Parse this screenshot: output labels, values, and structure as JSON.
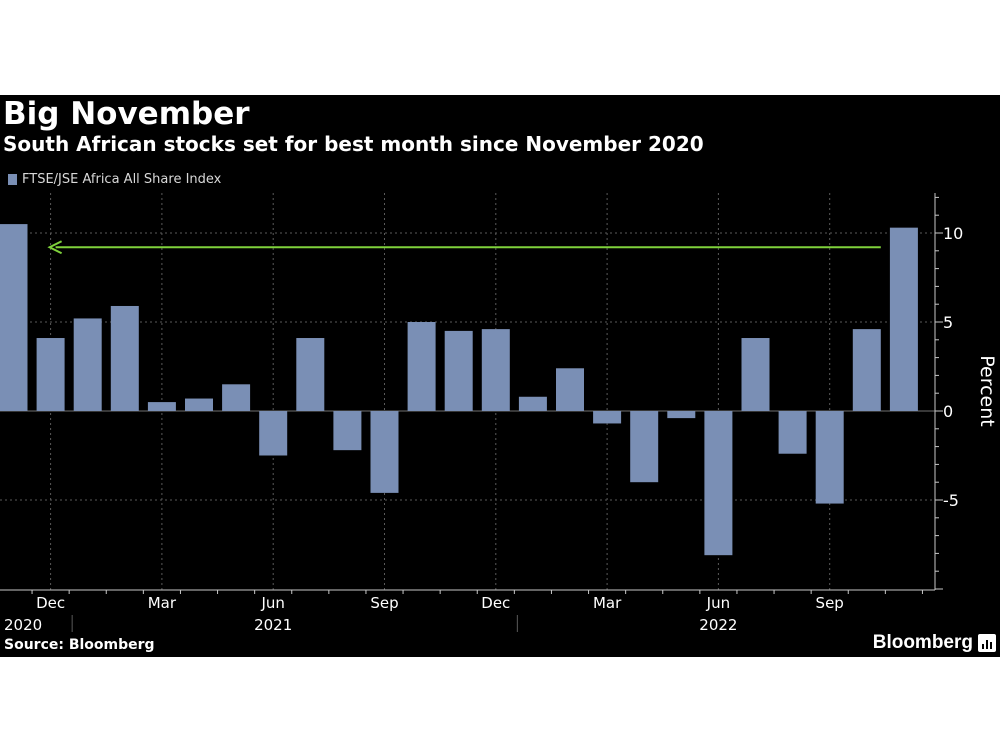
{
  "chart_data": {
    "type": "bar",
    "title": "Big November",
    "subtitle": "South African stocks set for best month since November 2020",
    "ylabel": "Percent",
    "ylim": [
      -10,
      12
    ],
    "yticks": [
      -5,
      0,
      5,
      10
    ],
    "grid": true,
    "legend_position": "top-left",
    "series": [
      {
        "name": "FTSE/JSE Africa All Share Index",
        "color": "#7a8fb5",
        "values": [
          10.5,
          4.1,
          5.2,
          5.9,
          0.5,
          0.7,
          1.5,
          -2.5,
          4.1,
          -2.2,
          -4.6,
          5.0,
          4.5,
          4.6,
          0.8,
          2.4,
          -0.7,
          -4.0,
          -0.4,
          -8.1,
          4.1,
          -2.4,
          -5.2,
          4.6,
          10.3
        ]
      }
    ],
    "categories": [
      "Nov 2020",
      "Dec 2020",
      "Jan 2021",
      "Feb 2021",
      "Mar 2021",
      "Apr 2021",
      "May 2021",
      "Jun 2021",
      "Jul 2021",
      "Aug 2021",
      "Sep 2021",
      "Oct 2021",
      "Nov 2021",
      "Dec 2021",
      "Jan 2022",
      "Feb 2022",
      "Mar 2022",
      "Apr 2022",
      "May 2022",
      "Jun 2022",
      "Jul 2022",
      "Aug 2022",
      "Sep 2022",
      "Oct 2022",
      "Nov 2022"
    ],
    "x_tick_labels": [
      {
        "index": 1,
        "label": "Dec"
      },
      {
        "index": 4,
        "label": "Mar"
      },
      {
        "index": 7,
        "label": "Jun"
      },
      {
        "index": 10,
        "label": "Sep"
      },
      {
        "index": 13,
        "label": "Dec"
      },
      {
        "index": 16,
        "label": "Mar"
      },
      {
        "index": 19,
        "label": "Jun"
      },
      {
        "index": 22,
        "label": "Sep"
      }
    ],
    "year_labels": [
      {
        "index": 0,
        "label": "2020"
      },
      {
        "index": 7,
        "label": "2021"
      },
      {
        "index": 19,
        "label": "2022"
      }
    ],
    "annotation": {
      "type": "arrow",
      "from_index": 23,
      "to_index": 1,
      "y": 9.2,
      "color": "#7fd13b"
    }
  },
  "source": "Source: Bloomberg",
  "logo_text": "Bloomberg",
  "colors": {
    "background": "#000000",
    "grid": "#5a5a5a",
    "axis": "#c8c8c8",
    "text": "#ffffff"
  }
}
